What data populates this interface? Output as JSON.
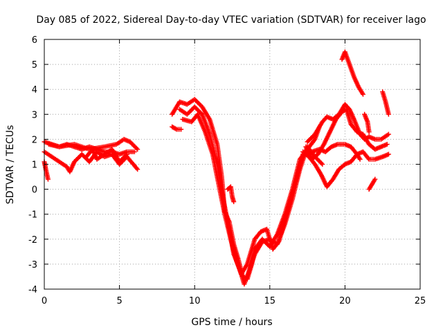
{
  "chart_data": {
    "type": "scatter",
    "title": "Day 085 of 2022, Sidereal Day-to-day VTEC variation (SDTVAR) for receiver lago",
    "xlabel": "GPS time / hours",
    "ylabel": "SDTVAR / TECUs",
    "xlim": [
      0,
      25
    ],
    "ylim": [
      -4,
      6
    ],
    "xticks": [
      "0",
      "5",
      "10",
      "15",
      "20",
      "25"
    ],
    "yticks": [
      "-4",
      "-3",
      "-2",
      "-1",
      "0",
      "1",
      "2",
      "3",
      "4",
      "5",
      "6"
    ],
    "grid": true,
    "marker": "+",
    "color": "#ff0000",
    "series": [
      {
        "points": [
          [
            0.0,
            1.9
          ],
          [
            0.5,
            1.8
          ],
          [
            1.0,
            1.7
          ],
          [
            1.5,
            1.8
          ],
          [
            2.0,
            1.7
          ],
          [
            2.5,
            1.6
          ],
          [
            3.0,
            1.7
          ],
          [
            3.5,
            1.6
          ],
          [
            4.0,
            1.5
          ],
          [
            4.5,
            1.5
          ],
          [
            5.0,
            1.4
          ],
          [
            5.5,
            1.5
          ],
          [
            6.0,
            1.5
          ]
        ]
      },
      {
        "points": [
          [
            0.0,
            1.5
          ],
          [
            0.5,
            1.3
          ],
          [
            1.0,
            1.1
          ],
          [
            1.5,
            0.9
          ],
          [
            1.7,
            0.7
          ],
          [
            2.0,
            1.1
          ],
          [
            2.5,
            1.4
          ],
          [
            3.0,
            1.1
          ],
          [
            3.5,
            1.5
          ],
          [
            4.0,
            1.3
          ],
          [
            4.5,
            1.4
          ],
          [
            5.0,
            1.0
          ],
          [
            5.5,
            1.3
          ],
          [
            6.2,
            0.8
          ]
        ]
      },
      {
        "points": [
          [
            0.0,
            1.1
          ],
          [
            0.1,
            0.8
          ],
          [
            0.25,
            0.4
          ]
        ]
      },
      {
        "points": [
          [
            0.3,
            1.8
          ],
          [
            1.0,
            1.7
          ],
          [
            2.0,
            1.8
          ],
          [
            3.0,
            1.6
          ],
          [
            4.0,
            1.7
          ],
          [
            4.8,
            1.8
          ],
          [
            5.3,
            2.0
          ],
          [
            5.7,
            1.9
          ],
          [
            6.2,
            1.6
          ]
        ]
      },
      {
        "points": [
          [
            2.8,
            1.3
          ],
          [
            3.2,
            1.6
          ],
          [
            3.5,
            1.2
          ],
          [
            4.0,
            1.4
          ],
          [
            4.5,
            1.6
          ],
          [
            5.0,
            1.1
          ],
          [
            5.5,
            1.4
          ]
        ]
      },
      {
        "points": [
          [
            8.5,
            2.5
          ],
          [
            8.8,
            2.4
          ],
          [
            9.1,
            2.4
          ]
        ]
      },
      {
        "points": [
          [
            8.5,
            3.0
          ],
          [
            8.8,
            3.3
          ],
          [
            9.0,
            3.5
          ],
          [
            9.5,
            3.4
          ],
          [
            10.0,
            3.6
          ],
          [
            10.5,
            3.3
          ],
          [
            11.0,
            2.8
          ],
          [
            11.5,
            1.8
          ],
          [
            11.8,
            0.5
          ],
          [
            12.0,
            -0.9
          ],
          [
            12.3,
            -1.3
          ],
          [
            12.6,
            -2.2
          ],
          [
            12.9,
            -2.8
          ],
          [
            13.2,
            -3.5
          ],
          [
            13.5,
            -3.6
          ],
          [
            13.8,
            -3.0
          ],
          [
            14.0,
            -2.4
          ],
          [
            14.5,
            -2.0
          ],
          [
            15.0,
            -2.3
          ],
          [
            15.5,
            -1.8
          ],
          [
            16.0,
            -1.0
          ],
          [
            16.5,
            0.0
          ],
          [
            17.0,
            1.2
          ],
          [
            17.5,
            1.6
          ],
          [
            18.0,
            2.0
          ],
          [
            18.3,
            2.5
          ]
        ]
      },
      {
        "points": [
          [
            9.0,
            3.2
          ],
          [
            9.5,
            3.0
          ],
          [
            10.0,
            3.3
          ],
          [
            10.5,
            3.0
          ],
          [
            11.0,
            2.2
          ],
          [
            11.5,
            1.0
          ],
          [
            11.9,
            -0.4
          ],
          [
            12.3,
            -1.6
          ],
          [
            12.6,
            -2.6
          ],
          [
            13.0,
            -3.2
          ],
          [
            13.3,
            -3.8
          ],
          [
            13.6,
            -3.3
          ],
          [
            14.0,
            -2.6
          ],
          [
            14.5,
            -2.1
          ],
          [
            15.0,
            -2.0
          ],
          [
            15.5,
            -2.2
          ],
          [
            16.0,
            -1.4
          ],
          [
            16.5,
            -0.4
          ],
          [
            17.0,
            0.8
          ],
          [
            17.5,
            1.7
          ],
          [
            18.0,
            1.3
          ],
          [
            18.5,
            1.0
          ]
        ]
      },
      {
        "points": [
          [
            9.2,
            2.8
          ],
          [
            9.8,
            2.7
          ],
          [
            10.2,
            3.0
          ],
          [
            10.7,
            2.3
          ],
          [
            11.2,
            1.4
          ],
          [
            11.6,
            0.2
          ],
          [
            12.0,
            -1.0
          ],
          [
            12.4,
            -2.0
          ],
          [
            12.8,
            -2.9
          ],
          [
            13.1,
            -3.4
          ],
          [
            13.5,
            -3.0
          ],
          [
            14.0,
            -2.0
          ],
          [
            14.4,
            -1.7
          ],
          [
            14.8,
            -1.6
          ],
          [
            15.2,
            -2.4
          ],
          [
            15.6,
            -2.1
          ],
          [
            16.2,
            -0.8
          ],
          [
            16.8,
            0.5
          ],
          [
            17.2,
            1.4
          ]
        ]
      },
      {
        "points": [
          [
            12.2,
            0.0
          ],
          [
            12.4,
            0.1
          ],
          [
            12.5,
            -0.3
          ],
          [
            12.6,
            -0.5
          ]
        ]
      },
      {
        "points": [
          [
            17.2,
            1.5
          ],
          [
            17.6,
            1.3
          ],
          [
            18.0,
            1.0
          ],
          [
            18.4,
            0.6
          ],
          [
            18.8,
            0.1
          ],
          [
            19.2,
            0.4
          ],
          [
            19.6,
            0.8
          ],
          [
            20.0,
            1.0
          ],
          [
            20.4,
            1.1
          ],
          [
            20.8,
            1.4
          ],
          [
            21.2,
            1.5
          ],
          [
            21.6,
            1.2
          ],
          [
            22.0,
            1.2
          ],
          [
            22.5,
            1.3
          ],
          [
            22.9,
            1.4
          ]
        ]
      },
      {
        "points": [
          [
            17.4,
            1.7
          ],
          [
            17.8,
            1.2
          ],
          [
            18.2,
            1.4
          ],
          [
            18.6,
            1.8
          ],
          [
            19.0,
            2.3
          ],
          [
            19.4,
            2.8
          ],
          [
            19.8,
            3.1
          ],
          [
            20.1,
            3.2
          ],
          [
            20.4,
            2.6
          ],
          [
            20.8,
            2.3
          ],
          [
            21.2,
            2.2
          ],
          [
            21.6,
            1.8
          ],
          [
            22.0,
            1.6
          ],
          [
            22.4,
            1.7
          ],
          [
            22.8,
            1.8
          ]
        ]
      },
      {
        "points": [
          [
            17.5,
            1.9
          ],
          [
            18.0,
            2.2
          ],
          [
            18.5,
            2.7
          ],
          [
            18.8,
            2.9
          ],
          [
            19.2,
            2.8
          ],
          [
            19.6,
            3.0
          ],
          [
            20.0,
            3.4
          ],
          [
            20.3,
            3.2
          ],
          [
            20.6,
            2.8
          ],
          [
            21.0,
            2.2
          ],
          [
            21.3,
            2.0
          ],
          [
            21.6,
            2.1
          ],
          [
            22.0,
            2.0
          ],
          [
            22.4,
            2.0
          ],
          [
            22.9,
            2.2
          ]
        ]
      },
      {
        "points": [
          [
            17.8,
            1.5
          ],
          [
            18.3,
            1.6
          ],
          [
            18.7,
            1.5
          ],
          [
            19.1,
            1.7
          ],
          [
            19.5,
            1.8
          ],
          [
            20.0,
            1.8
          ],
          [
            20.4,
            1.7
          ],
          [
            20.8,
            1.4
          ],
          [
            21.0,
            1.2
          ]
        ]
      },
      {
        "points": [
          [
            19.8,
            5.2
          ],
          [
            20.0,
            5.5
          ],
          [
            20.3,
            5.0
          ],
          [
            20.6,
            4.5
          ],
          [
            20.9,
            4.1
          ],
          [
            21.2,
            3.8
          ]
        ]
      },
      {
        "points": [
          [
            21.3,
            3.0
          ],
          [
            21.5,
            2.7
          ],
          [
            21.6,
            2.3
          ]
        ]
      },
      {
        "points": [
          [
            22.5,
            3.9
          ],
          [
            22.7,
            3.5
          ],
          [
            22.9,
            3.0
          ]
        ]
      },
      {
        "points": [
          [
            21.6,
            0.0
          ],
          [
            21.8,
            0.2
          ],
          [
            22.0,
            0.4
          ]
        ]
      }
    ]
  }
}
